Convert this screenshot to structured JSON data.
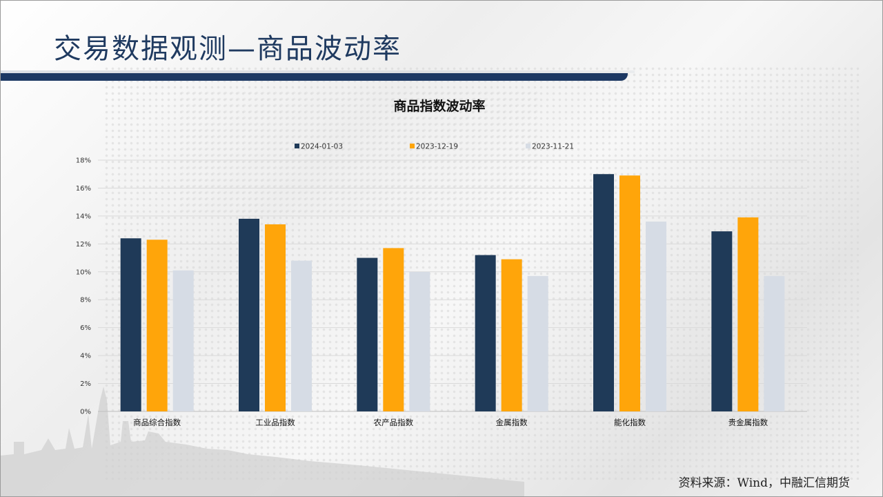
{
  "page": {
    "title": "交易数据观测—商品波动率",
    "source": "资料来源：Wind，中融汇信期货"
  },
  "colors": {
    "series1": "#1f3a58",
    "series2": "#ffa50a",
    "series3": "#d6dce5",
    "title_text": "#1f3a60",
    "title_bar": "#1c3863"
  },
  "chart_data": {
    "type": "bar",
    "title": "商品指数波动率",
    "categories": [
      "商品综合指数",
      "工业品指数",
      "农产品指数",
      "金属指数",
      "能化指数",
      "贵金属指数"
    ],
    "series": [
      {
        "name": "2024-01-03",
        "values": [
          12.4,
          13.8,
          11.0,
          11.2,
          17.0,
          12.9
        ]
      },
      {
        "name": "2023-12-19",
        "values": [
          12.3,
          13.4,
          11.7,
          10.9,
          16.9,
          13.9
        ]
      },
      {
        "name": "2023-11-21",
        "values": [
          10.1,
          10.8,
          10.0,
          9.7,
          13.6,
          9.7
        ]
      }
    ],
    "ylim": [
      0,
      18
    ],
    "yticks": [
      0,
      2,
      4,
      6,
      8,
      10,
      12,
      14,
      16,
      18
    ],
    "ytick_labels": [
      "0%",
      "2%",
      "4%",
      "6%",
      "8%",
      "10%",
      "12%",
      "14%",
      "16%",
      "18%"
    ],
    "xlabel": "",
    "ylabel": "",
    "legend_position": "top",
    "grid": true
  }
}
